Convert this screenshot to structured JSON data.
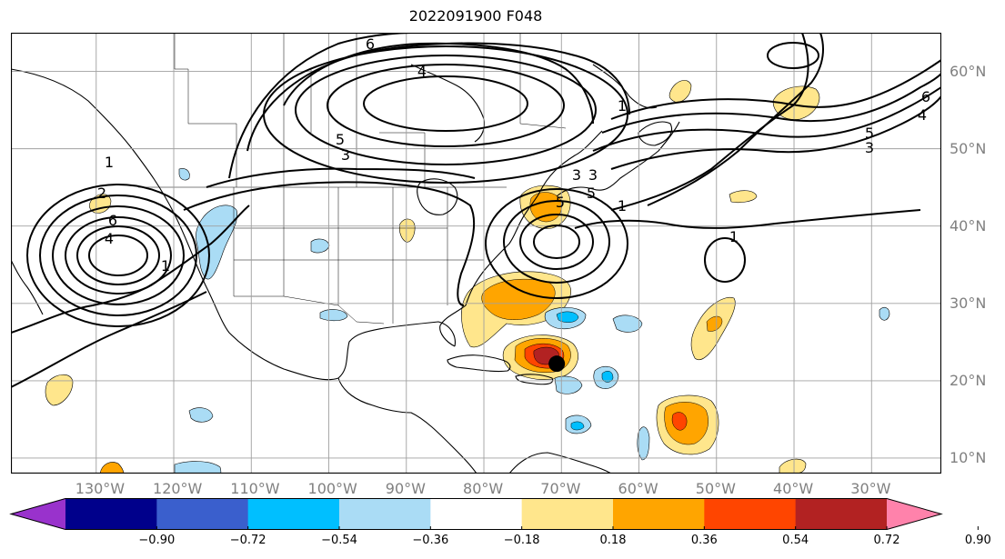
{
  "title": "2022091900 F048",
  "lon_labels": [
    {
      "text": "130°W",
      "lon": -130
    },
    {
      "text": "120°W",
      "lon": -120
    },
    {
      "text": "110°W",
      "lon": -110
    },
    {
      "text": "100°W",
      "lon": -100
    },
    {
      "text": "90°W",
      "lon": -90
    },
    {
      "text": "80°W",
      "lon": -80
    },
    {
      "text": "70°W",
      "lon": -70
    },
    {
      "text": "60°W",
      "lon": -60
    },
    {
      "text": "50°W",
      "lon": -50
    },
    {
      "text": "40°W",
      "lon": -40
    },
    {
      "text": "30°W",
      "lon": -30
    }
  ],
  "lat_labels": [
    {
      "text": "60°N",
      "lat": 60
    },
    {
      "text": "50°N",
      "lat": 50
    },
    {
      "text": "40°N",
      "lat": 40
    },
    {
      "text": "30°N",
      "lat": 30
    },
    {
      "text": "20°N",
      "lat": 20
    },
    {
      "text": "10°N",
      "lat": 10
    }
  ],
  "colorbar": {
    "tick_labels": [
      "−0.90",
      "−0.72",
      "−0.54",
      "−0.36",
      "−0.18",
      "0.18",
      "0.36",
      "0.54",
      "0.72",
      "0.90"
    ],
    "colors": [
      "#9932cc",
      "#00008b",
      "#3a5fcd",
      "#00bfff",
      "#aadcf5",
      "#ffffff",
      "#ffe68c",
      "#ffa500",
      "#ff4500",
      "#b22222",
      "#ff82ab"
    ]
  },
  "contour_labels": [
    "6",
    "4",
    "5",
    "3",
    "1",
    "2",
    "6",
    "4",
    "5",
    "3",
    "1",
    "1",
    "3",
    "5",
    "1",
    "3",
    "5",
    "6",
    "4",
    "1"
  ],
  "marker": {
    "name": "storm-center",
    "lon": -70.6,
    "lat": 22.2
  }
}
